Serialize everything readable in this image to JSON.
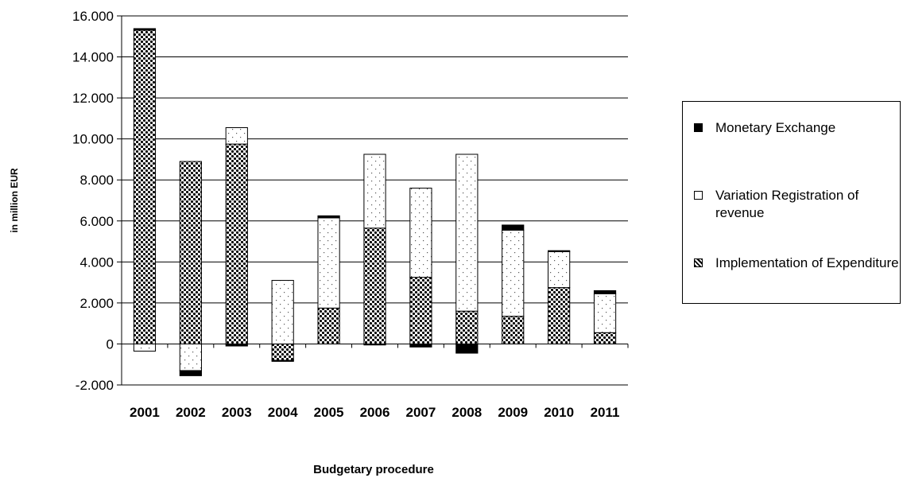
{
  "chart_data": {
    "type": "bar",
    "stacked": true,
    "title": "",
    "xlabel": "Budgetary procedure",
    "ylabel": "in million EUR",
    "ylim": [
      -2000,
      16000
    ],
    "yticks": [
      -2000,
      0,
      2000,
      4000,
      6000,
      8000,
      10000,
      12000,
      14000,
      16000
    ],
    "ytick_labels": [
      "-2.000",
      "0",
      "2.000",
      "4.000",
      "6.000",
      "8.000",
      "10.000",
      "12.000",
      "14.000",
      "16.000"
    ],
    "grid": true,
    "legend_position": "right",
    "categories": [
      "2001",
      "2002",
      "2003",
      "2004",
      "2005",
      "2006",
      "2007",
      "2008",
      "2009",
      "2010",
      "2011"
    ],
    "series": [
      {
        "name": "Implementation of Expenditure",
        "pattern": "dark-dots",
        "values": [
          15300,
          8900,
          9750,
          -800,
          1750,
          5650,
          3250,
          1600,
          1350,
          2750,
          550
        ]
      },
      {
        "name": "Variation Registration of revenue",
        "pattern": "light-dots",
        "values": [
          -350,
          -1300,
          800,
          3100,
          4400,
          3600,
          4350,
          7650,
          4200,
          1750,
          1900
        ]
      },
      {
        "name": "Monetary Exchange",
        "pattern": "solid-black",
        "values": [
          80,
          -250,
          -100,
          -50,
          100,
          -50,
          -150,
          -450,
          250,
          50,
          150
        ]
      }
    ]
  },
  "legend": {
    "items": [
      {
        "label": "Monetary Exchange",
        "series": 2
      },
      {
        "label": "Variation Registration of revenue",
        "series": 1
      },
      {
        "label": "Implementation of Expenditure",
        "series": 0
      }
    ]
  }
}
